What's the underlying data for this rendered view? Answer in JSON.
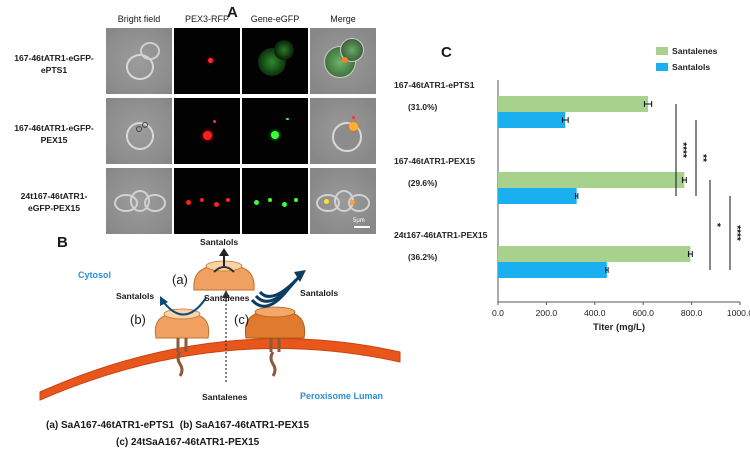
{
  "panel_a": {
    "letter": "A",
    "columns": [
      "Bright field",
      "PEX3-RFP",
      "Gene-eGFP",
      "Merge"
    ],
    "rows": [
      {
        "label_line1": "167-46tATR1-eGFP-",
        "label_line2": "ePTS1"
      },
      {
        "label_line1": "167-46tATR1-eGFP-",
        "label_line2": "PEX15"
      },
      {
        "label_line1": "24t167-46tATR1-",
        "label_line2": "eGFP-PEX15"
      }
    ],
    "scale_bar": "5μm"
  },
  "panel_b": {
    "letter": "B",
    "cytosol_label": "Cytosol",
    "lumen_label": "Peroxisome Luman",
    "enzyme_labels": {
      "a": "(a)",
      "b": "(b)",
      "c": "(c)"
    },
    "molecule_labels": {
      "santalols_top": "Santalols",
      "santalenes_mid": "Santalenes",
      "santalols_left": "Santalols",
      "santalols_right": "Santalols",
      "santalenes_bottom": "Santalenes"
    },
    "captions": [
      "(a) SaA167-46tATR1-ePTS1  (b) SaA167-46tATR1-PEX15",
      "(c) 24tSaA167-46tATR1-PEX15"
    ],
    "colors": {
      "membrane": "#e8561c",
      "enzyme": "#f0a060",
      "enzyme_dark": "#d9792d",
      "cytosol_text": "#2a8fd6"
    }
  },
  "chart_data": {
    "letter": "C",
    "type": "bar",
    "orientation": "horizontal",
    "categories": [
      "167-46tATR1-ePTS1",
      "167-46tATR1-PEX15",
      "24t167-46tATR1-PEX15"
    ],
    "category_notes": [
      "(31.0%)",
      "(29.6%)",
      "(36.2%)"
    ],
    "series": [
      {
        "name": "Santalenes",
        "color": "#a9d18e",
        "values": [
          620,
          770,
          795
        ],
        "errors": [
          15,
          8,
          8
        ]
      },
      {
        "name": "Santalols",
        "color": "#1ab0ef",
        "values": [
          278,
          325,
          450
        ],
        "errors": [
          12,
          5,
          5
        ]
      }
    ],
    "xlabel": "Titer (mg/L)",
    "xlim": [
      0,
      1000
    ],
    "xticks": [
      "0.0",
      "200.0",
      "400.0",
      "600.0",
      "800.0",
      "1000.0"
    ],
    "legend_position": "top-right",
    "significance": [
      "****",
      "**",
      "*",
      "****"
    ],
    "grid": false
  }
}
